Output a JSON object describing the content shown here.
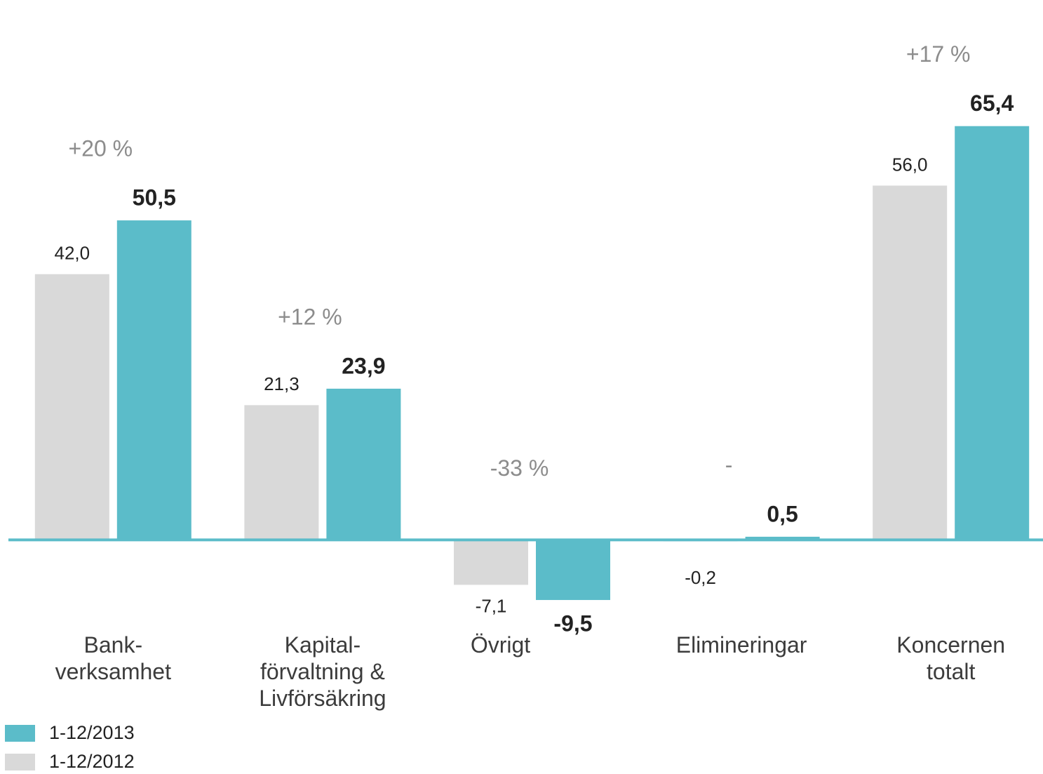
{
  "chart_data": {
    "type": "bar",
    "categories": [
      "Bank-\nverksamhet",
      "Kapital-\nförvaltning &\nLivförsäkring",
      "Övrigt",
      "Elimineringar",
      "Koncernen\ntotalt"
    ],
    "series": [
      {
        "name": "1-12/2012",
        "color": "#d9d9d9",
        "values": [
          42.0,
          21.3,
          -7.1,
          -0.2,
          56.0
        ],
        "value_labels": [
          "42,0",
          "21,3",
          "-7,1",
          "-0,2",
          "56,0"
        ]
      },
      {
        "name": "1-12/2013",
        "color": "#5bbcc9",
        "values": [
          50.5,
          23.9,
          -9.5,
          0.5,
          65.4
        ],
        "value_labels": [
          "50,5",
          "23,9",
          "-9,5",
          "0,5",
          "65,4"
        ]
      }
    ],
    "change_labels": [
      "+20 %",
      "+12 %",
      "-33 %",
      "-",
      "+17 %"
    ],
    "ylim": [
      -37,
      85
    ]
  }
}
